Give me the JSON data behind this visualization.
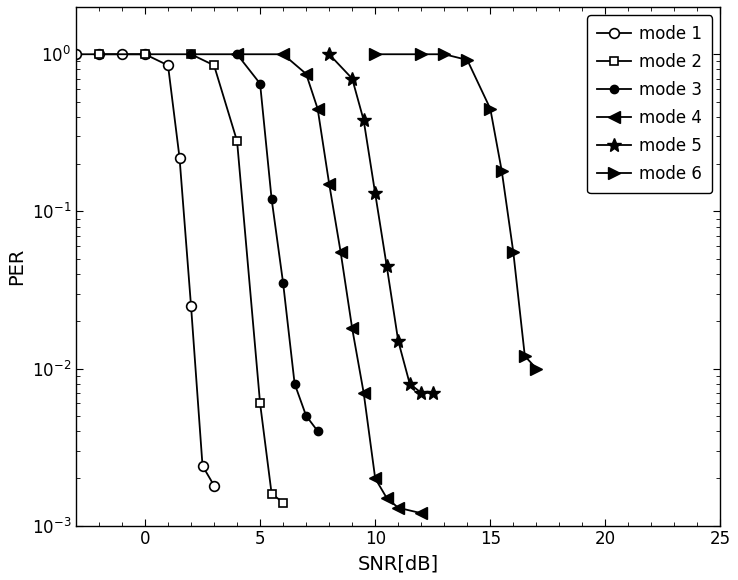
{
  "title": "",
  "xlabel": "SNR[dB]",
  "ylabel": "PER",
  "xlim": [
    -3,
    25
  ],
  "color": "#000000",
  "background": "#ffffff",
  "mode1_snr": [
    -3,
    -2,
    -1,
    0,
    1,
    1.5,
    2.0,
    2.5,
    3.0
  ],
  "mode1_per": [
    1.0,
    1.0,
    1.0,
    1.0,
    0.85,
    0.22,
    0.025,
    0.0024,
    0.0018
  ],
  "mode2_snr": [
    -2,
    0,
    2,
    3,
    4,
    5,
    5.5,
    6.0
  ],
  "mode2_per": [
    1.0,
    1.0,
    1.0,
    0.85,
    0.28,
    0.006,
    0.0016,
    0.0014
  ],
  "mode3_snr": [
    2,
    4,
    5,
    5.5,
    6.0,
    6.5,
    7.0,
    7.5
  ],
  "mode3_per": [
    1.0,
    1.0,
    0.65,
    0.12,
    0.035,
    0.008,
    0.005,
    0.004
  ],
  "mode4_snr": [
    4,
    6,
    7,
    7.5,
    8.0,
    8.5,
    9.0,
    9.5,
    10.0,
    10.5,
    11.0,
    12.0
  ],
  "mode4_per": [
    1.0,
    1.0,
    0.75,
    0.45,
    0.15,
    0.055,
    0.018,
    0.007,
    0.002,
    0.0015,
    0.0013,
    0.0012
  ],
  "mode5_snr": [
    8,
    9,
    9.5,
    10.0,
    10.5,
    11.0,
    11.5,
    12.0,
    12.5
  ],
  "mode5_per": [
    1.0,
    0.7,
    0.38,
    0.13,
    0.045,
    0.015,
    0.008,
    0.007,
    0.007
  ],
  "mode6_snr": [
    10,
    12,
    13,
    14,
    15,
    15.5,
    16.0,
    16.5,
    17.0
  ],
  "mode6_per": [
    1.0,
    1.0,
    1.0,
    0.92,
    0.45,
    0.18,
    0.055,
    0.012,
    0.01
  ]
}
